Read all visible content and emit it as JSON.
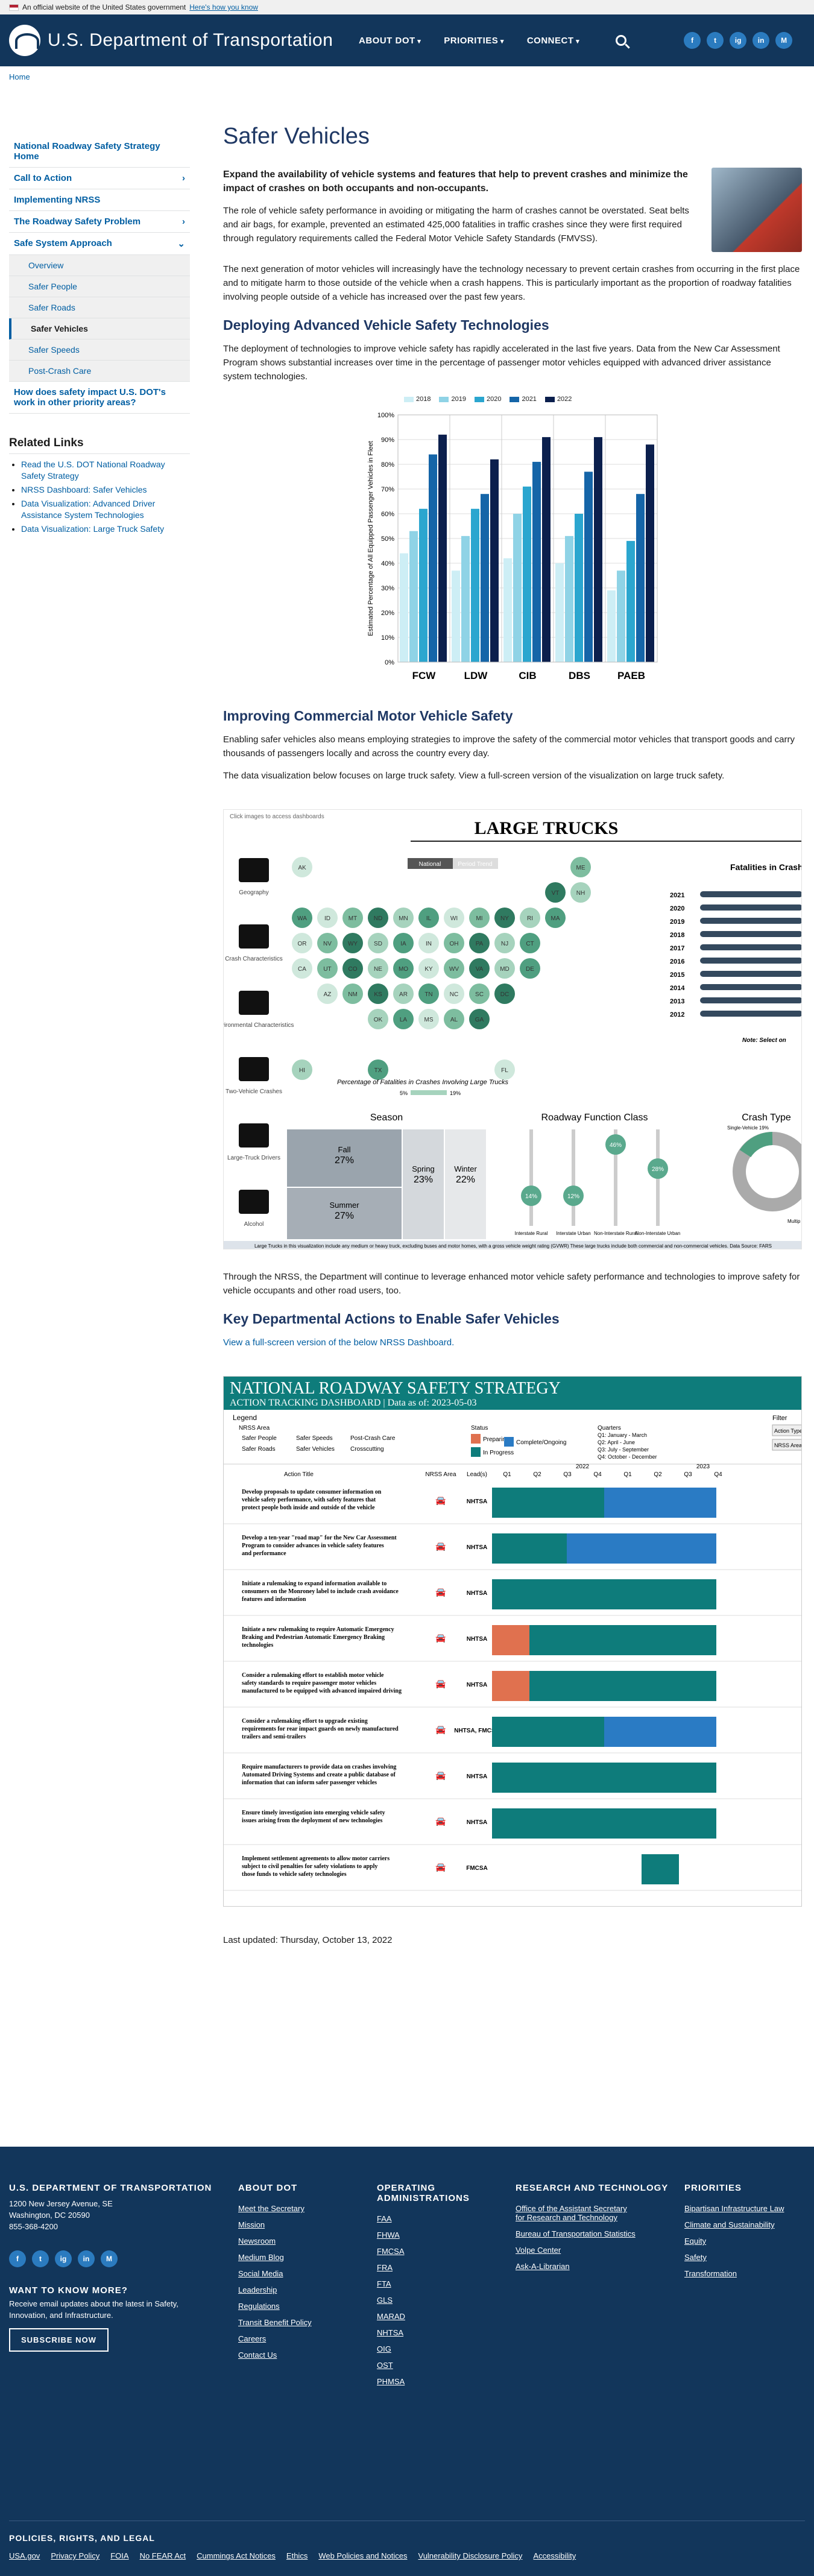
{
  "banner": {
    "text": "An official website of the United States government",
    "link": "Here's how you know"
  },
  "header": {
    "title": "U.S. Department of Transportation",
    "nav": [
      "ABOUT DOT",
      "PRIORITIES",
      "CONNECT"
    ],
    "socials": [
      "f",
      "t",
      "ig",
      "in",
      "M"
    ]
  },
  "breadcrumb": "Home",
  "sidebar": {
    "items": [
      "National Roadway Safety Strategy Home",
      "Call to Action",
      "Implementing NRSS",
      "The Roadway Safety Problem",
      "Safe System Approach"
    ],
    "subs": [
      "Overview",
      "Safer People",
      "Safer Roads",
      "Safer Vehicles",
      "Safer Speeds",
      "Post-Crash Care"
    ],
    "tail": "How does safety impact U.S. DOT's work in other priority areas?"
  },
  "related": {
    "title": "Related Links",
    "links": [
      "Read the U.S. DOT National Roadway Safety Strategy",
      "NRSS Dashboard: Safer Vehicles",
      "Data Visualization: Advanced Driver Assistance System Technologies",
      "Data Visualization: Large Truck Safety"
    ]
  },
  "main": {
    "title": "Safer Vehicles",
    "lead": "Expand the availability of vehicle systems and features that help to prevent crashes and minimize the impact of crashes on both occupants and non-occupants.",
    "p1": "The role of vehicle safety performance in avoiding or mitigating the harm of crashes cannot be overstated. Seat belts and air bags, for example, prevented an estimated 425,000 fatalities in traffic crashes since they were first required through regulatory requirements called the Federal Motor Vehicle Safety Standards (FMVSS).",
    "p2": "The next generation of motor vehicles will increasingly have the technology necessary to prevent certain crashes from occurring in the first place and to mitigate harm to those outside of the vehicle when a crash happens. This is particularly important as the proportion of roadway fatalities involving people outside of a vehicle has increased over the past few years.",
    "h2a": "Deploying Advanced Vehicle Safety Technologies",
    "p3": "The deployment of technologies to improve vehicle safety has rapidly accelerated in the last five years. Data from the New Car Assessment Program shows substantial increases over time in the percentage of passenger motor vehicles equipped with advanced driver assistance system technologies.",
    "h2b": "Improving Commercial Motor Vehicle Safety",
    "p4": "Enabling safer vehicles also means employing strategies to improve the safety of the commercial motor vehicles that transport goods and carry thousands of passengers locally and across the country every day.",
    "p5": "The data visualization below focuses on large truck safety. View a full-screen version of the visualization on large truck safety.",
    "p6": "Through the NRSS, the Department will continue to leverage enhanced motor vehicle safety performance and technologies to improve safety for vehicle occupants and other road users, too.",
    "h2c": "Key Departmental Actions to Enable Safer Vehicles",
    "p7": "View a full-screen version of the below NRSS Dashboard.",
    "updated": "Last updated: Thursday, October 13, 2022"
  },
  "chart_data": {
    "type": "bar",
    "categories": [
      "FCW",
      "LDW",
      "CIB",
      "DBS",
      "PAEB"
    ],
    "ylabel": "Estimated Percentage of All Equipped Passenger Vehicles in Fleet",
    "ylim": [
      0,
      100
    ],
    "series": [
      {
        "name": "2018",
        "values": [
          44,
          37,
          42,
          40,
          29
        ]
      },
      {
        "name": "2019",
        "values": [
          53,
          51,
          60,
          51,
          37
        ]
      },
      {
        "name": "2020",
        "values": [
          62,
          62,
          71,
          60,
          49
        ]
      },
      {
        "name": "2021",
        "values": [
          84,
          68,
          81,
          77,
          68
        ]
      },
      {
        "name": "2022",
        "values": [
          92,
          82,
          91,
          91,
          88
        ]
      }
    ],
    "colors": [
      "#cdeef5",
      "#8fd3e6",
      "#2ba6cf",
      "#1565a8",
      "#0b1f4d"
    ]
  },
  "viz": {
    "hint": "Click images to access dashboards",
    "title": "LARGE TRUCKS",
    "toggle": [
      "National",
      "Period Trend"
    ],
    "cats": [
      "Geography",
      "Crash Characteristics",
      "Environmental Characteristics",
      "Two-Vehicle Crashes",
      "Large-Truck Drivers",
      "Alcohol"
    ],
    "fatal_title": "Fatalities in Crashes I",
    "years": [
      "2021",
      "2020",
      "2019",
      "2018",
      "2017",
      "2016",
      "2015",
      "2014",
      "2013",
      "2012"
    ],
    "maptitle": "Percentage of Fatalities in Crashes Involving Large Trucks",
    "mapmin": "5%",
    "mapmax": "19%",
    "states": [
      "AK",
      "ME",
      "VT",
      "NH",
      "WA",
      "ID",
      "MT",
      "ND",
      "MN",
      "IL",
      "WI",
      "MI",
      "NY",
      "RI",
      "MA",
      "OR",
      "NV",
      "WY",
      "SD",
      "IA",
      "IN",
      "OH",
      "PA",
      "NJ",
      "CT",
      "CA",
      "UT",
      "CO",
      "NE",
      "MO",
      "KY",
      "WV",
      "VA",
      "MD",
      "DE",
      "AZ",
      "NM",
      "KS",
      "AR",
      "TN",
      "NC",
      "SC",
      "DC",
      "OK",
      "LA",
      "MS",
      "AL",
      "GA",
      "HI",
      "TX",
      "FL"
    ],
    "season": {
      "title": "Season",
      "fall": "Fall",
      "fallv": "27%",
      "summer": "Summer",
      "summerv": "27%",
      "spring": "Spring",
      "springv": "23%",
      "winter": "Winter",
      "winterv": "22%"
    },
    "road": {
      "title": "Roadway Function Class",
      "vals": [
        "14%",
        "12%",
        "46%",
        "28%"
      ],
      "labels": [
        "Interstate Rural",
        "Interstate Urban",
        "Non-Interstate Rural",
        "Non-Interstate Urban"
      ]
    },
    "crash": {
      "title": "Crash Type",
      "single": "Single-Vehicle 19%",
      "multi": "Multip"
    },
    "note": "Note: Select on",
    "foot": "Large Trucks in this visualization include any medium or heavy truck, excluding buses and motor homes, with a gross vehicle weight rating (GVWR) These large trucks include both commercial and non-commercial vehicles. Data Source: FARS"
  },
  "nrss": {
    "title": "NATIONAL ROADWAY SAFETY STRATEGY",
    "sub": "ACTION TRACKING DASHBOARD | Data as of: 2023-05-03",
    "legend": "Legend",
    "area": "NRSS Area",
    "areas": [
      "Safer People",
      "Safer Speeds",
      "Post-Crash Care",
      "Safer Roads",
      "Safer Vehicles",
      "Crosscutting"
    ],
    "status": "Status",
    "statuses": [
      "Preparing",
      "In Progress",
      "Complete/Ongoing"
    ],
    "quarters": "Quarters",
    "qlist": [
      "Q1: January - March",
      "Q2: April - June",
      "Q3: July - September",
      "Q4: October - December"
    ],
    "filter": "Filter",
    "filters": [
      "Action Type",
      "NRSS Area"
    ],
    "cols": [
      "Action Title",
      "NRSS Area",
      "Lead(s)",
      "Q1",
      "Q2",
      "Q3",
      "Q4",
      "Q1",
      "Q2",
      "Q3",
      "Q4"
    ],
    "years": [
      "2022",
      "2023"
    ],
    "rows": [
      {
        "t": "Develop proposals to update consumer information on vehicle safety performance, with safety features that protect people both inside and outside of the vehicle",
        "lead": "NHTSA",
        "b": [
          "g",
          "g",
          "g",
          "b",
          "b",
          "b"
        ]
      },
      {
        "t": "Develop a ten-year \"road map\" for the New Car Assessment Program to consider advances in vehicle safety features and performance",
        "lead": "NHTSA",
        "b": [
          "g",
          "g",
          "b",
          "b",
          "b",
          "b"
        ]
      },
      {
        "t": "Initiate a rulemaking to expand information available to consumers on the Monroney label to include crash avoidance features and information",
        "lead": "NHTSA",
        "b": [
          "g",
          "g",
          "g",
          "g",
          "g",
          "g"
        ]
      },
      {
        "t": "Initiate a new rulemaking to require Automatic Emergency Braking and Pedestrian Automatic Emergency Braking technologies",
        "lead": "NHTSA",
        "b": [
          "o",
          "g",
          "g",
          "g",
          "g",
          "g"
        ]
      },
      {
        "t": "Consider a rulemaking effort to establish motor vehicle safety standards to require passenger motor vehicles manufactured to be equipped with advanced impaired driving prevention technology",
        "lead": "NHTSA",
        "b": [
          "o",
          "g",
          "g",
          "g",
          "g",
          "g"
        ]
      },
      {
        "t": "Consider a rulemaking effort to upgrade existing requirements for rear impact guards on newly manufactured trailers and semi-trailers",
        "lead": "NHTSA, FMCSA",
        "b": [
          "g",
          "g",
          "g",
          "b",
          "b",
          "b"
        ]
      },
      {
        "t": "Require manufacturers to provide data on crashes involving Automated Driving Systems and create a public database of information that can inform safer passenger vehicles",
        "lead": "NHTSA",
        "b": [
          "g",
          "g",
          "g",
          "g",
          "g",
          "g"
        ]
      },
      {
        "t": "Ensure timely investigation into emerging vehicle safety issues arising from the deployment of new technologies",
        "lead": "NHTSA",
        "b": [
          "g",
          "g",
          "g",
          "g",
          "g",
          "g"
        ]
      },
      {
        "t": "Implement settlement agreements to allow motor carriers subject to civil penalties for safety violations to apply those funds to vehicle safety technologies",
        "lead": "FMCSA",
        "b": [
          "",
          "",
          "",
          "",
          "g",
          ""
        ]
      }
    ]
  },
  "footer": {
    "org": "U.S. DEPARTMENT OF TRANSPORTATION",
    "addr1": "1200 New Jersey Avenue, SE",
    "addr2": "Washington, DC 20590",
    "phone": "855-368-4200",
    "want": "WANT TO KNOW MORE?",
    "want_text": "Receive email updates about the latest in Safety, Innovation, and Infrastructure.",
    "subscribe": "SUBSCRIBE NOW",
    "cols": [
      {
        "h": "ABOUT DOT",
        "l": [
          "Meet the Secretary",
          "Mission",
          "Newsroom",
          "Medium Blog",
          "Social Media",
          "Leadership",
          "Regulations",
          "Transit Benefit Policy",
          "Careers",
          "Contact Us"
        ]
      },
      {
        "h": "OPERATING ADMINISTRATIONS",
        "l": [
          "FAA",
          "FHWA",
          "FMCSA",
          "FRA",
          "FTA",
          "GLS",
          "MARAD",
          "NHTSA",
          "OIG",
          "OST",
          "PHMSA"
        ]
      },
      {
        "h": "RESEARCH AND TECHNOLOGY",
        "l": [
          "Office of the Assistant Secretary for Research and Technology",
          "Bureau of Transportation Statistics",
          "Volpe Center",
          "Ask-A-Librarian"
        ]
      },
      {
        "h": "PRIORITIES",
        "l": [
          "Bipartisan Infrastructure Law",
          "Climate and Sustainability",
          "Equity",
          "Safety",
          "Transformation"
        ]
      }
    ],
    "legal_h": "POLICIES, RIGHTS, AND LEGAL",
    "legal": [
      "USA.gov",
      "Privacy Policy",
      "FOIA",
      "No FEAR Act",
      "Cummings Act Notices",
      "Ethics",
      "Web Policies and Notices",
      "Vulnerability Disclosure Policy",
      "Accessibility"
    ]
  }
}
